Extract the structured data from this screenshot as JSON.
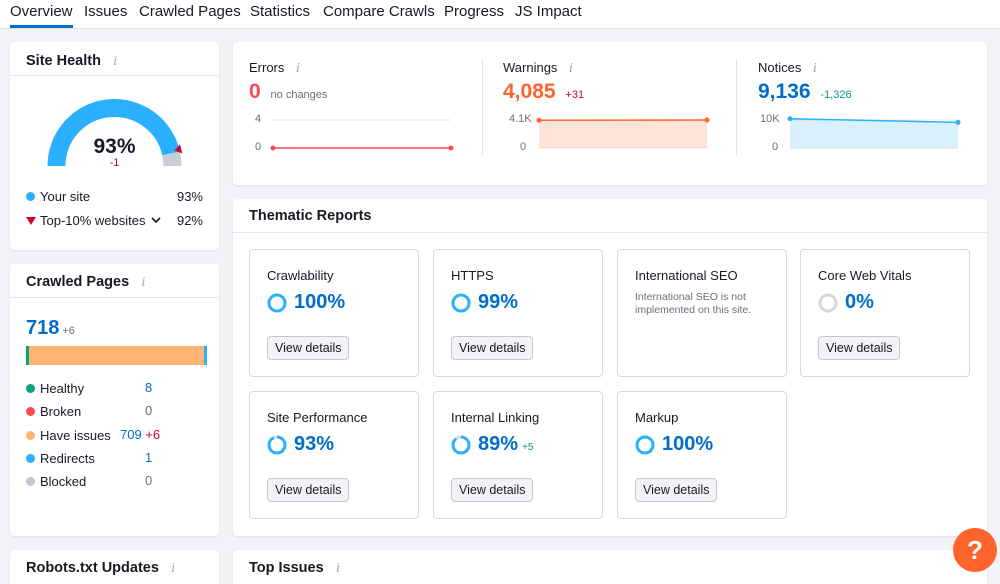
{
  "tabs": [
    {
      "label": "Overview",
      "active": true
    },
    {
      "label": "Issues"
    },
    {
      "label": "Crawled Pages"
    },
    {
      "label": "Statistics"
    },
    {
      "label": "Compare Crawls"
    },
    {
      "label": "Progress"
    },
    {
      "label": "JS Impact"
    }
  ],
  "site_health": {
    "title": "Site Health",
    "info": "i",
    "score": "93%",
    "score_value": 93,
    "delta": "-1",
    "legend": [
      {
        "label": "Your site",
        "value": "93%",
        "color": "#2ab0ff"
      },
      {
        "label": "Top-10% websites",
        "value": "92%",
        "color": "#c7072e"
      }
    ]
  },
  "crawled_pages": {
    "title": "Crawled Pages",
    "info": "i",
    "total": "718",
    "delta": "+6",
    "bar": [
      {
        "name": "healthy",
        "value": 8,
        "color": "#00a67e"
      },
      {
        "name": "have-issues",
        "value": 709,
        "color": "#ffb471"
      },
      {
        "name": "redirects",
        "value": 1,
        "color": "#2bb1ff"
      }
    ],
    "rows": [
      {
        "label": "Healthy",
        "value": "8",
        "delta": "",
        "color": "#00a67e"
      },
      {
        "label": "Broken",
        "value": "0",
        "delta": "",
        "color": "#ff4953"
      },
      {
        "label": "Have issues",
        "value": "709",
        "delta": "+6",
        "color": "#ffb471"
      },
      {
        "label": "Redirects",
        "value": "1",
        "delta": "",
        "color": "#2bb1ff"
      },
      {
        "label": "Blocked",
        "value": "0",
        "delta": "",
        "color": "#c4c7cf"
      }
    ]
  },
  "metrics": {
    "errors": {
      "label": "Errors",
      "info": "i",
      "value": "0",
      "delta": "no changes",
      "color": "#ff4953",
      "ticks": [
        "4",
        "0"
      ],
      "series": [
        0,
        0
      ]
    },
    "warnings": {
      "label": "Warnings",
      "info": "i",
      "value": "4,085",
      "delta": "+31",
      "color": "#ff642d",
      "ticks": [
        "4.1K",
        "0"
      ],
      "series": [
        4054,
        4085
      ]
    },
    "notices": {
      "label": "Notices",
      "info": "i",
      "value": "9,136",
      "delta": "-1,326",
      "color": "#2bb1ff",
      "ticks": [
        "10K",
        "0"
      ],
      "series": [
        10462,
        9136
      ]
    }
  },
  "thematic": {
    "title": "Thematic Reports",
    "reports": [
      {
        "name": "Crawlability",
        "pct": "100%",
        "value": 100,
        "button": "View details"
      },
      {
        "name": "HTTPS",
        "pct": "99%",
        "value": 99,
        "button": "View details"
      },
      {
        "name": "International SEO",
        "note": "International SEO is not implemented on this site."
      },
      {
        "name": "Core Web Vitals",
        "pct": "0%",
        "value": 0,
        "button": "View details"
      },
      {
        "name": "Site Performance",
        "pct": "93%",
        "value": 93,
        "button": "View details"
      },
      {
        "name": "Internal Linking",
        "pct": "89%",
        "value": 89,
        "delta": "+5",
        "button": "View details"
      },
      {
        "name": "Markup",
        "pct": "100%",
        "value": 100,
        "button": "View details"
      }
    ]
  },
  "robots": {
    "title": "Robots.txt Updates",
    "info": "i"
  },
  "top_issues": {
    "title": "Top Issues",
    "info": "i"
  },
  "help": {
    "label": "?"
  },
  "colors": {
    "accent": "#006dca",
    "brand_orange": "#ff642d",
    "error": "#ff4953",
    "notice": "#2bb1ff",
    "success": "#009f81"
  }
}
